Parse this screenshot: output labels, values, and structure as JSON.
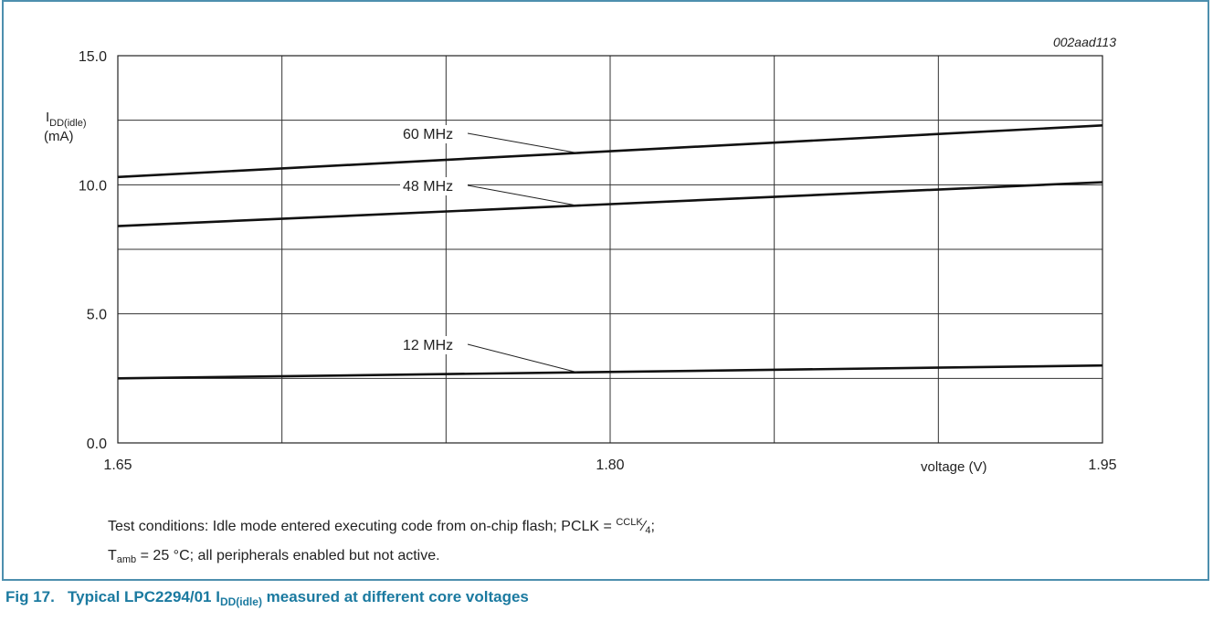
{
  "chart_data": {
    "type": "line",
    "code": "002aad113",
    "ylabel_main": "I",
    "ylabel_sub": "DD(idle)",
    "ylabel_unit": "(mA)",
    "xlabel": "voltage (V)",
    "xlim": [
      1.65,
      1.95
    ],
    "ylim": [
      0.0,
      15.0
    ],
    "grid": true,
    "x_ticks": [
      "1.65",
      "1.80",
      "1.95"
    ],
    "y_ticks": [
      "0.0",
      "5.0",
      "10.0",
      "15.0"
    ],
    "x": [
      1.65,
      1.95
    ],
    "series": [
      {
        "name": "60 MHz",
        "values": [
          10.3,
          12.3
        ]
      },
      {
        "name": "48 MHz",
        "values": [
          8.4,
          10.1
        ]
      },
      {
        "name": "12 MHz",
        "values": [
          2.5,
          3.0
        ]
      }
    ]
  },
  "notes": {
    "line1_prefix": "Test conditions: Idle mode entered executing code from on-chip flash; PCLK = ",
    "line1_frac_num": "CCLK",
    "line1_frac_den": "4",
    "line1_suffix": ";",
    "line2_T": "T",
    "line2_sub": "amb",
    "line2_rest": " = 25 °C; all peripherals enabled but not active."
  },
  "caption": {
    "number": "Fig 17.",
    "text_prefix": "Typical LPC2294/01 I",
    "text_sub": "DD(idle)",
    "text_suffix": " measured at different core voltages"
  }
}
